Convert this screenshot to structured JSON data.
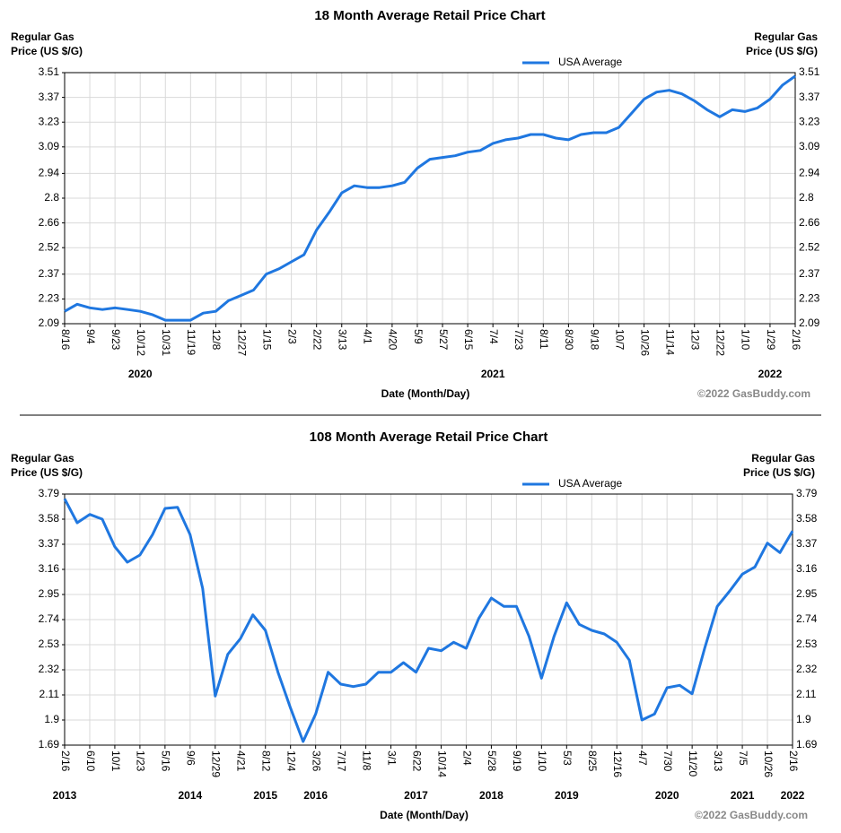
{
  "chart_data": [
    {
      "type": "line",
      "title": "18 Month Average Retail Price Chart",
      "ylabel_lines": [
        "Regular Gas",
        "Price (US $/G)"
      ],
      "xlabel": "Date (Month/Day)",
      "credit": "©2022 GasBuddy.com",
      "grid": true,
      "legend": "top",
      "ylim": [
        2.09,
        3.51
      ],
      "yticks": [
        2.09,
        2.23,
        2.37,
        2.52,
        2.66,
        2.8,
        2.94,
        3.09,
        3.23,
        3.37,
        3.51
      ],
      "categories": [
        "8/16",
        null,
        "9/4",
        null,
        "9/23",
        null,
        "10/12",
        null,
        "10/31",
        null,
        "11/19",
        null,
        "12/8",
        null,
        "12/27",
        null,
        "1/15",
        null,
        "2/3",
        null,
        "2/22",
        null,
        "3/13",
        null,
        "4/1",
        null,
        "4/20",
        null,
        "5/9",
        null,
        "5/27",
        null,
        "6/15",
        null,
        "7/4",
        null,
        "7/23",
        null,
        "8/11",
        null,
        "8/30",
        null,
        "9/18",
        null,
        "10/7",
        null,
        "10/26",
        null,
        "11/14",
        null,
        "12/3",
        null,
        "12/22",
        null,
        "1/10",
        null,
        "1/29",
        null,
        "2/16"
      ],
      "year_labels": [
        null,
        null,
        null,
        null,
        null,
        null,
        "2020",
        null,
        null,
        null,
        null,
        null,
        null,
        null,
        null,
        null,
        null,
        null,
        null,
        null,
        null,
        null,
        null,
        null,
        null,
        null,
        null,
        null,
        null,
        null,
        null,
        null,
        null,
        null,
        "2021",
        null,
        null,
        null,
        null,
        null,
        null,
        null,
        null,
        null,
        null,
        null,
        null,
        null,
        null,
        null,
        null,
        null,
        null,
        null,
        null,
        null,
        "2022",
        null,
        null
      ],
      "series": [
        {
          "name": "USA Average",
          "color": "#1f77e0",
          "values": [
            2.16,
            2.2,
            2.18,
            2.17,
            2.18,
            2.17,
            2.16,
            2.14,
            2.11,
            2.11,
            2.11,
            2.15,
            2.16,
            2.22,
            2.25,
            2.28,
            2.37,
            2.4,
            2.44,
            2.48,
            2.62,
            2.72,
            2.83,
            2.87,
            2.86,
            2.86,
            2.87,
            2.89,
            2.97,
            3.02,
            3.03,
            3.04,
            3.06,
            3.07,
            3.11,
            3.13,
            3.14,
            3.16,
            3.16,
            3.14,
            3.13,
            3.16,
            3.17,
            3.17,
            3.2,
            3.28,
            3.36,
            3.4,
            3.41,
            3.39,
            3.35,
            3.3,
            3.26,
            3.3,
            3.29,
            3.31,
            3.36,
            3.44,
            3.49
          ]
        }
      ]
    },
    {
      "type": "line",
      "title": "108 Month Average Retail Price Chart",
      "ylabel_lines": [
        "Regular Gas",
        "Price (US $/G)"
      ],
      "xlabel": "Date (Month/Day)",
      "credit": "©2022 GasBuddy.com",
      "grid": true,
      "legend": "top",
      "ylim": [
        1.69,
        3.79
      ],
      "yticks": [
        1.69,
        1.9,
        2.11,
        2.32,
        2.53,
        2.74,
        2.95,
        3.16,
        3.37,
        3.58,
        3.79
      ],
      "categories": [
        "2/16",
        null,
        "6/10",
        null,
        "10/1",
        null,
        "1/23",
        null,
        "5/16",
        null,
        "9/6",
        null,
        "12/29",
        null,
        "4/21",
        null,
        "8/12",
        null,
        "12/4",
        null,
        "3/26",
        null,
        "7/17",
        null,
        "11/8",
        null,
        "3/1",
        null,
        "6/22",
        null,
        "10/14",
        null,
        "2/4",
        null,
        "5/28",
        null,
        "9/19",
        null,
        "1/10",
        null,
        "5/3",
        null,
        "8/25",
        null,
        "12/16",
        null,
        "4/7",
        null,
        "7/30",
        null,
        "11/20",
        null,
        "3/13",
        null,
        "7/5",
        null,
        "10/26",
        null,
        "2/16"
      ],
      "year_labels": [
        "2013",
        null,
        null,
        null,
        null,
        null,
        null,
        null,
        null,
        null,
        "2014",
        null,
        null,
        null,
        null,
        null,
        "2015",
        null,
        null,
        null,
        "2016",
        null,
        null,
        null,
        null,
        null,
        null,
        null,
        "2017",
        null,
        null,
        null,
        null,
        null,
        "2018",
        null,
        null,
        null,
        null,
        null,
        "2019",
        null,
        null,
        null,
        null,
        null,
        null,
        null,
        "2020",
        null,
        null,
        null,
        null,
        null,
        "2021",
        null,
        null,
        null,
        "2022"
      ],
      "series": [
        {
          "name": "USA Average",
          "color": "#1f77e0",
          "values": [
            3.75,
            3.55,
            3.62,
            3.58,
            3.35,
            3.22,
            3.28,
            3.45,
            3.67,
            3.68,
            3.45,
            3.0,
            2.1,
            2.45,
            2.58,
            2.78,
            2.65,
            2.3,
            2.0,
            1.72,
            1.95,
            2.3,
            2.2,
            2.18,
            2.2,
            2.3,
            2.3,
            2.38,
            2.3,
            2.5,
            2.48,
            2.55,
            2.5,
            2.75,
            2.92,
            2.85,
            2.85,
            2.6,
            2.25,
            2.6,
            2.88,
            2.7,
            2.65,
            2.62,
            2.55,
            2.4,
            1.9,
            1.95,
            2.17,
            2.19,
            2.12,
            2.5,
            2.85,
            2.98,
            3.12,
            3.18,
            3.38,
            3.3,
            3.48
          ]
        }
      ]
    }
  ]
}
